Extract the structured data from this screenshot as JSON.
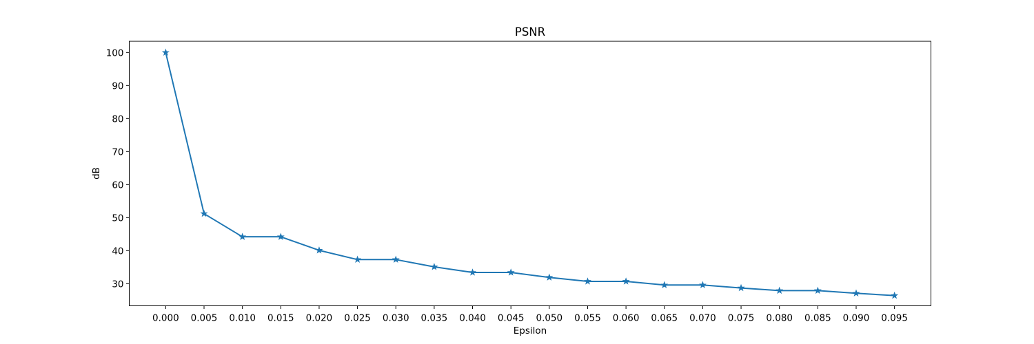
{
  "chart_data": {
    "type": "line",
    "title": "PSNR",
    "xlabel": "Epsilon",
    "ylabel": "dB",
    "x": [
      0.0,
      0.005,
      0.01,
      0.015,
      0.02,
      0.025,
      0.03,
      0.035,
      0.04,
      0.045,
      0.05,
      0.055,
      0.06,
      0.065,
      0.07,
      0.075,
      0.08,
      0.085,
      0.09,
      0.095
    ],
    "x_tick_labels": [
      "0.000",
      "0.005",
      "0.010",
      "0.015",
      "0.020",
      "0.025",
      "0.030",
      "0.035",
      "0.040",
      "0.045",
      "0.050",
      "0.055",
      "0.060",
      "0.065",
      "0.070",
      "0.075",
      "0.080",
      "0.085",
      "0.090",
      "0.095"
    ],
    "y_ticks": [
      30,
      40,
      50,
      60,
      70,
      80,
      90,
      100
    ],
    "y_tick_labels": [
      "30",
      "40",
      "50",
      "60",
      "70",
      "80",
      "90",
      "100"
    ],
    "xlim": [
      -0.00475,
      0.09975
    ],
    "ylim": [
      23.3,
      103.4
    ],
    "grid": false,
    "series": [
      {
        "marker": "star",
        "color": "#1f77b4",
        "values": [
          100.0,
          51.2,
          44.2,
          44.2,
          40.1,
          37.3,
          37.3,
          35.1,
          33.4,
          33.4,
          31.9,
          30.7,
          30.7,
          29.6,
          29.6,
          28.7,
          27.9,
          27.9,
          27.1,
          26.4
        ]
      }
    ]
  }
}
